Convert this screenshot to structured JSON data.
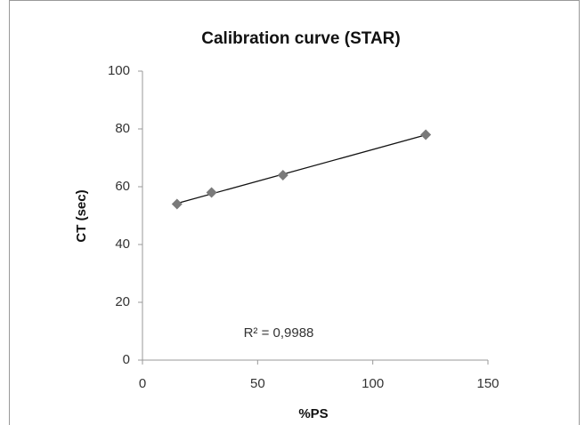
{
  "chart_data": {
    "type": "scatter",
    "title": "Calibration curve (STAR)",
    "x_label": "%PS",
    "y_label": "CT (sec)",
    "series": [
      {
        "name": "STAR",
        "color": "#7a7a7a",
        "x": [
          15,
          30,
          61,
          123
        ],
        "values": [
          54,
          58,
          64,
          78
        ]
      }
    ],
    "trendline": {
      "type": "linear",
      "color": "#111111"
    },
    "annotations": [
      "R² = 0,9988"
    ],
    "xlim": [
      0,
      150
    ],
    "xticks": [
      0,
      50,
      100,
      150
    ],
    "ylim": [
      0,
      100
    ],
    "yticks": [
      0,
      20,
      40,
      60,
      80,
      100
    ],
    "grid": false
  }
}
